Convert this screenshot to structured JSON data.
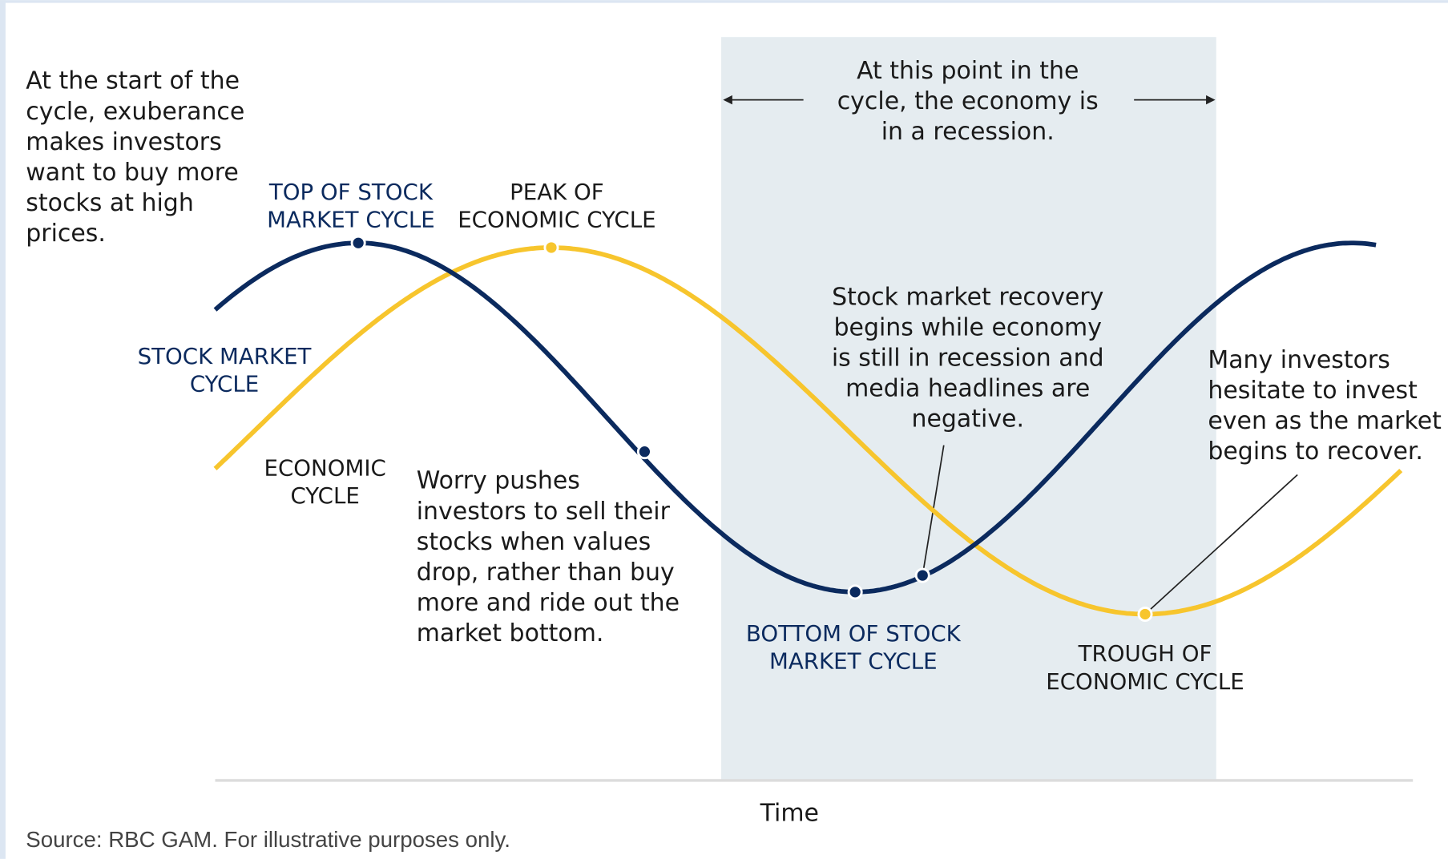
{
  "diagram": {
    "start_note": [
      "At the start of the",
      "cycle, exuberance",
      "makes investors",
      "want to buy more",
      "stocks at high",
      "prices."
    ],
    "top_label": [
      "TOP OF STOCK",
      "MARKET CYCLE"
    ],
    "peak_label": [
      "PEAK OF",
      "ECONOMIC CYCLE"
    ],
    "stock_label": [
      "STOCK MARKET",
      "CYCLE"
    ],
    "economic_label": [
      "ECONOMIC",
      "CYCLE"
    ],
    "worry_note": [
      "Worry pushes",
      "investors to sell their",
      "stocks when values",
      "drop, rather than buy",
      "more and ride out the",
      "market bottom."
    ],
    "recession_note": [
      "At this point in the",
      "cycle, the economy is",
      "in a recession."
    ],
    "recovery_note": [
      "Stock market recovery",
      "begins while economy",
      "is still in recession and",
      "media headlines are",
      "negative."
    ],
    "hesitate_note": [
      "Many investors",
      "hesitate to invest",
      "even as the market",
      "begins to recover."
    ],
    "bottom_label": [
      "BOTTOM OF STOCK",
      "MARKET CYCLE"
    ],
    "trough_label": [
      "TROUGH OF",
      "ECONOMIC CYCLE"
    ],
    "x_axis_label": "Time",
    "source": "Source: RBC GAM. For illustrative purposes only."
  }
}
